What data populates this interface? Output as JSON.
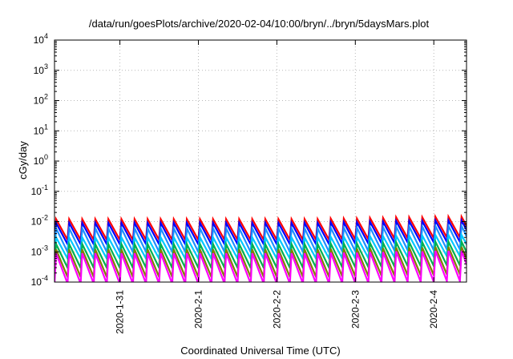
{
  "chart_data": {
    "type": "line",
    "title": "/data/run/goesPlots/archive/2020-02-04/10:00/bryn/../bryn/5daysMars.plot",
    "xlabel": "Coordinated Universal Time (UTC)",
    "ylabel": "cGy/day",
    "y_scale": "log",
    "ylim": [
      0.0001,
      10000
    ],
    "y_ticks": [
      {
        "base": "10",
        "exp": "4"
      },
      {
        "base": "10",
        "exp": "3"
      },
      {
        "base": "10",
        "exp": "2"
      },
      {
        "base": "10",
        "exp": "1"
      },
      {
        "base": "10",
        "exp": "0"
      },
      {
        "base": "10",
        "exp": "-1"
      },
      {
        "base": "10",
        "exp": "-2"
      },
      {
        "base": "10",
        "exp": "-3"
      },
      {
        "base": "10",
        "exp": "-4"
      }
    ],
    "xlim": [
      "2020-01-30T04:00",
      "2020-02-04T10:00"
    ],
    "x_ticks": [
      {
        "label": "2020-1-31",
        "t": "2020-01-31T00:00"
      },
      {
        "label": "2020-2-1",
        "t": "2020-02-01T00:00"
      },
      {
        "label": "2020-2-2",
        "t": "2020-02-02T00:00"
      },
      {
        "label": "2020-2-3",
        "t": "2020-02-03T00:00"
      },
      {
        "label": "2020-2-4",
        "t": "2020-02-04T00:00"
      }
    ],
    "grid": true,
    "legend": "none",
    "sawtooth_period_hours": 4,
    "series": [
      {
        "color": "#ff0000",
        "peak": 0.012,
        "trough": 0.0025
      },
      {
        "color": "#0000ff",
        "peak": 0.009,
        "trough": 0.0018
      },
      {
        "color": "#1e90ff",
        "peak": 0.006,
        "trough": 0.001
      },
      {
        "color": "#00c8ff",
        "peak": 0.003,
        "trough": 0.0006
      },
      {
        "color": "#00b050",
        "peak": 0.0018,
        "trough": 0.0003
      },
      {
        "color": "#808000",
        "peak": 0.0012,
        "trough": 0.00015
      },
      {
        "color": "#ff00ff",
        "peak": 0.0009,
        "trough": 9e-05
      }
    ]
  }
}
